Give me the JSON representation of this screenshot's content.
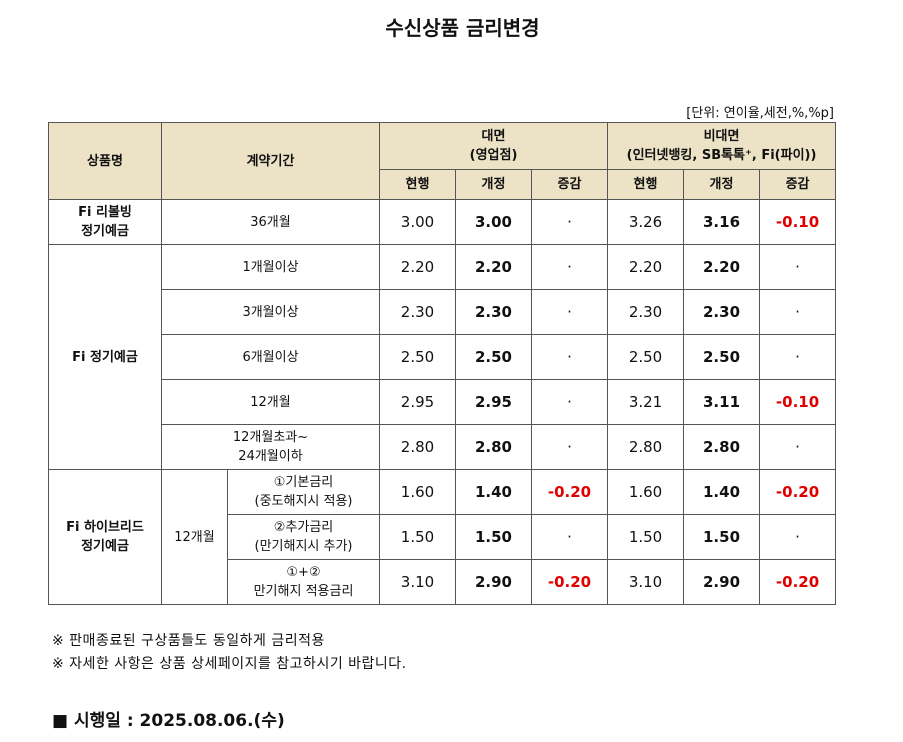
{
  "title": "수신상품 금리변경",
  "unit_note": "[단위: 연이율,세전,%,%p]",
  "table": {
    "header": {
      "product": "상품명",
      "term": "계약기간",
      "groups": [
        {
          "name": "대면",
          "sub": "(영업점)"
        },
        {
          "name": "비대면",
          "sub": "(인터넷뱅킹, SB톡톡⁺, Fi(파이))"
        }
      ],
      "columns": [
        "현행",
        "개정",
        "증감",
        "현행",
        "개정",
        "증감"
      ]
    },
    "products": [
      {
        "name": [
          "Fi 리볼빙",
          "정기예금"
        ],
        "rows": [
          {
            "term": [
              "36개월"
            ],
            "values": [
              "3.00",
              "3.00",
              "·",
              "3.26",
              "3.16",
              "-0.10"
            ]
          }
        ]
      },
      {
        "name": [
          "Fi 정기예금"
        ],
        "rows": [
          {
            "term": [
              "1개월이상"
            ],
            "values": [
              "2.20",
              "2.20",
              "·",
              "2.20",
              "2.20",
              "·"
            ]
          },
          {
            "term": [
              "3개월이상"
            ],
            "values": [
              "2.30",
              "2.30",
              "·",
              "2.30",
              "2.30",
              "·"
            ]
          },
          {
            "term": [
              "6개월이상"
            ],
            "values": [
              "2.50",
              "2.50",
              "·",
              "2.50",
              "2.50",
              "·"
            ]
          },
          {
            "term": [
              "12개월"
            ],
            "values": [
              "2.95",
              "2.95",
              "·",
              "3.21",
              "3.11",
              "-0.10"
            ]
          },
          {
            "term": [
              "12개월초과~",
              "24개월이하"
            ],
            "values": [
              "2.80",
              "2.80",
              "·",
              "2.80",
              "2.80",
              "·"
            ]
          }
        ]
      },
      {
        "name": [
          "Fi 하이브리드",
          "정기예금"
        ],
        "term": "12개월",
        "rows": [
          {
            "term": [
              "①기본금리",
              "(중도해지시 적용)"
            ],
            "values": [
              "1.60",
              "1.40",
              "-0.20",
              "1.60",
              "1.40",
              "-0.20"
            ]
          },
          {
            "term": [
              "②추가금리",
              "(만기해지시 추가)"
            ],
            "values": [
              "1.50",
              "1.50",
              "·",
              "1.50",
              "1.50",
              "·"
            ]
          },
          {
            "term": [
              "①+②",
              "만기해지 적용금리"
            ],
            "values": [
              "3.10",
              "2.90",
              "-0.20",
              "3.10",
              "2.90",
              "-0.20"
            ]
          }
        ]
      }
    ]
  },
  "notes": [
    "※ 판매종료된 구상품들도 동일하게 금리적용",
    "※ 자세한 사항은 상품 상세페이지를 참고하시기 바랍니다."
  ],
  "effective": {
    "label": "■ 시행일 :",
    "date": "2025.08.06.(수)"
  }
}
